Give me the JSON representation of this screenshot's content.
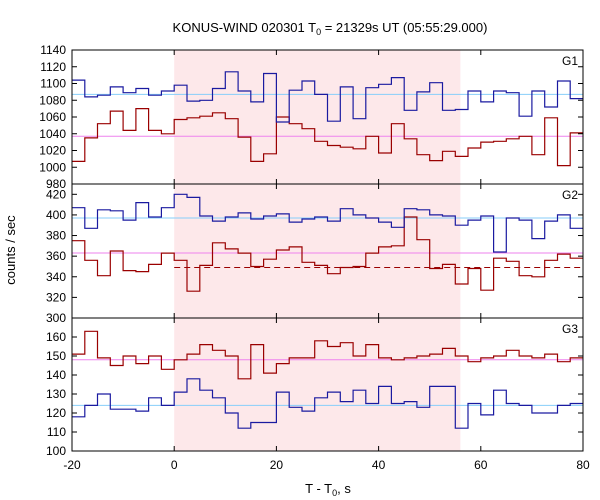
{
  "chart_data": {
    "type": "line",
    "title_main": "KONUS-WIND 020301 T",
    "title_sub": "0",
    "title_rest": " = 21329s UT (05:55:29.000)",
    "xlabel_main": "T - T",
    "xlabel_sub": "0",
    "xlabel_rest": ", s",
    "ylabel": "counts / sec",
    "xlim": [
      -20,
      80
    ],
    "xticks": [
      "-20",
      "0",
      "20",
      "40",
      "60",
      "80"
    ],
    "shaded_interval": [
      0,
      56
    ],
    "colors": {
      "blue": "#1a1aa0",
      "red": "#9a0000",
      "blue_level": "#87cefa",
      "red_level": "#ee82ee",
      "shade": "#fde8ea"
    },
    "panels": [
      {
        "name": "G1",
        "ylim": [
          980,
          1140
        ],
        "yticks": [
          "980",
          "1000",
          "1020",
          "1040",
          "1060",
          "1080",
          "1100",
          "1120",
          "1140"
        ],
        "blue_level": 1087,
        "red_level": 1037,
        "blue_x": [
          -20,
          -17.5,
          -15,
          -12.5,
          -10,
          -7.5,
          -5,
          -2.5,
          0,
          2.5,
          5,
          7.5,
          10,
          12.5,
          15,
          17.5,
          20,
          22.5,
          25,
          27.5,
          30,
          32.5,
          35,
          37.5,
          40,
          42.5,
          45,
          47.5,
          50,
          52.5,
          55,
          57.5,
          60,
          62.5,
          65,
          67.5,
          70,
          72.5,
          75,
          77.5,
          80
        ],
        "blue_values": [
          1104,
          1084,
          1086,
          1096,
          1089,
          1094,
          1086,
          1091,
          1098,
          1079,
          1080,
          1094,
          1114,
          1091,
          1078,
          1112,
          1054,
          1092,
          1103,
          1087,
          1055,
          1096,
          1058,
          1095,
          1099,
          1107,
          1068,
          1090,
          1101,
          1068,
          1069,
          1091,
          1078,
          1091,
          1089,
          1061,
          1091,
          1072,
          1103,
          1082,
          1090
        ],
        "red_values": [
          1007,
          1035,
          1052,
          1067,
          1044,
          1070,
          1044,
          1040,
          1057,
          1059,
          1061,
          1065,
          1058,
          1036,
          1007,
          1016,
          1060,
          1052,
          1046,
          1031,
          1026,
          1024,
          1022,
          1037,
          1017,
          1052,
          1034,
          1015,
          1008,
          1019,
          1013,
          1023,
          1030,
          1031,
          1034,
          1037,
          1015,
          1059,
          1002,
          1041,
          1008
        ]
      },
      {
        "name": "G2",
        "ylim": [
          300,
          430
        ],
        "yticks": [
          "300",
          "320",
          "340",
          "360",
          "380",
          "400",
          "420"
        ],
        "blue_level": 397,
        "red_level": 363,
        "red_dashed_level": 349,
        "blue_x": [
          -20,
          -17.5,
          -15,
          -12.5,
          -10,
          -7.5,
          -5,
          -2.5,
          0,
          2.5,
          5,
          7.5,
          10,
          12.5,
          15,
          17.5,
          20,
          22.5,
          25,
          27.5,
          30,
          32.5,
          35,
          37.5,
          40,
          42.5,
          45,
          47.5,
          50,
          52.5,
          55,
          57.5,
          60,
          62.5,
          65,
          67.5,
          70,
          72.5,
          75,
          77.5,
          80
        ],
        "blue_values": [
          407,
          387,
          405,
          404,
          395,
          412,
          398,
          407,
          420,
          417,
          399,
          394,
          398,
          402,
          396,
          399,
          401,
          393,
          396,
          398,
          394,
          406,
          400,
          397,
          393,
          388,
          406,
          405,
          400,
          399,
          390,
          395,
          399,
          364,
          397,
          395,
          377,
          394,
          400,
          387,
          399
        ],
        "red_values": [
          375,
          356,
          341,
          365,
          346,
          345,
          352,
          363,
          356,
          326,
          351,
          373,
          367,
          363,
          350,
          357,
          366,
          369,
          354,
          351,
          343,
          349,
          350,
          363,
          369,
          370,
          398,
          376,
          348,
          352,
          333,
          348,
          327,
          358,
          355,
          341,
          340,
          356,
          362,
          358,
          364
        ]
      },
      {
        "name": "G3",
        "ylim": [
          100,
          170
        ],
        "yticks": [
          "100",
          "110",
          "120",
          "130",
          "140",
          "150",
          "160"
        ],
        "blue_level": 124,
        "red_level": 148,
        "blue_x": [
          -20,
          -17.5,
          -15,
          -12.5,
          -10,
          -7.5,
          -5,
          -2.5,
          0,
          2.5,
          5,
          7.5,
          10,
          12.5,
          15,
          17.5,
          20,
          22.5,
          25,
          27.5,
          30,
          32.5,
          35,
          37.5,
          40,
          42.5,
          45,
          47.5,
          50,
          52.5,
          55,
          57.5,
          60,
          62.5,
          65,
          67.5,
          70,
          72.5,
          75,
          77.5,
          80
        ],
        "blue_values": [
          118,
          124,
          130,
          122,
          122,
          121,
          128,
          124,
          131,
          138,
          132,
          128,
          120,
          112,
          115,
          115,
          131,
          123,
          121,
          128,
          131,
          126,
          132,
          125,
          134,
          125,
          126,
          123,
          134,
          134,
          112,
          125,
          119,
          132,
          125,
          124,
          120,
          120,
          124,
          125,
          126
        ],
        "red_values": [
          151,
          163,
          149,
          145,
          150,
          146,
          150,
          143,
          148,
          151,
          156,
          153,
          150,
          138,
          156,
          141,
          146,
          149,
          149,
          158,
          155,
          157,
          150,
          156,
          149,
          148,
          149,
          150,
          151,
          154,
          150,
          147,
          149,
          150,
          153,
          150,
          149,
          151,
          147,
          149,
          155
        ]
      }
    ]
  }
}
